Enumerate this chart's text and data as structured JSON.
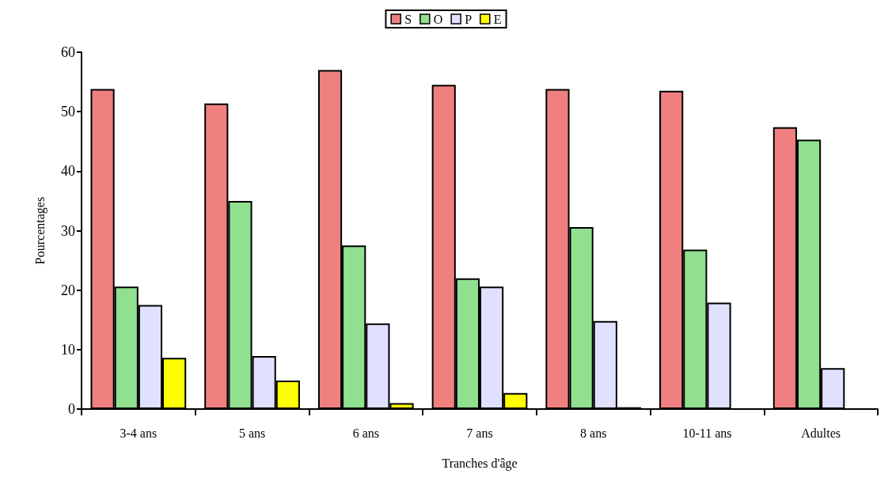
{
  "chart_data": {
    "type": "bar",
    "xlabel": "Tranches d'âge",
    "ylabel": "Pourcentages",
    "categories": [
      "3-4 ans",
      "5 ans",
      "6 ans",
      "7 ans",
      "8 ans",
      "10-11 ans",
      "Adultes"
    ],
    "series": [
      {
        "name": "S",
        "color": "#f08080",
        "values": [
          53.8,
          51.4,
          57,
          54.5,
          53.8,
          53.5,
          47.4
        ]
      },
      {
        "name": "O",
        "color": "#90e090",
        "values": [
          20.6,
          35,
          27.5,
          22,
          30.6,
          26.8,
          45.3
        ]
      },
      {
        "name": "P",
        "color": "#e0e0ff",
        "values": [
          17.5,
          8.9,
          14.4,
          20.6,
          14.8,
          17.9,
          6.9
        ]
      },
      {
        "name": "E",
        "color": "#ffff00",
        "values": [
          8.6,
          4.8,
          1.0,
          2.7,
          0.3,
          null,
          null
        ]
      }
    ],
    "ylim": [
      0,
      60
    ],
    "yticks": [
      0,
      10,
      20,
      30,
      40,
      50,
      60
    ],
    "grid": false,
    "legend": "top"
  }
}
